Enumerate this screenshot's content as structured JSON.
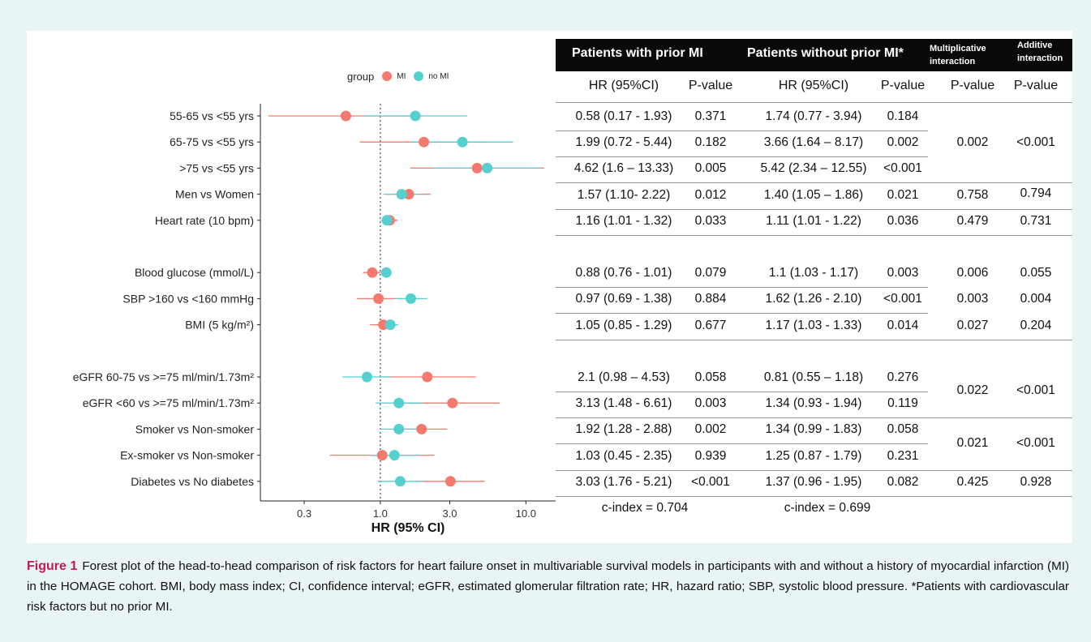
{
  "legend": {
    "title": "group",
    "mi_label": "MI",
    "nomi_label": "no MI"
  },
  "colors": {
    "mi": "#f47a6f",
    "nomi": "#56cfcf",
    "caption_label": "#c2185b"
  },
  "chart_data": {
    "type": "forest",
    "x_scale": "log",
    "xlim": [
      0.15,
      16
    ],
    "reference_line": 1.0,
    "xticks": [
      0.3,
      1.0,
      3.0,
      10.0
    ],
    "xtick_labels": [
      "0.3",
      "1.0",
      "3.0",
      "10.0"
    ],
    "xlabel": "HR (95% CI)",
    "legend_title": "group",
    "rows": [
      {
        "label": "55-65 vs <55 yrs",
        "mi": [
          0.58,
          0.17,
          1.93
        ],
        "nomi": [
          1.74,
          0.77,
          3.94
        ]
      },
      {
        "label": "65-75 vs <55 yrs",
        "mi": [
          1.99,
          0.72,
          5.44
        ],
        "nomi": [
          3.66,
          1.64,
          8.17
        ]
      },
      {
        "label": ">75 vs <55 yrs",
        "mi": [
          4.62,
          1.6,
          13.33
        ],
        "nomi": [
          5.42,
          2.34,
          12.55
        ]
      },
      {
        "label": "Men vs Women",
        "mi": [
          1.57,
          1.1,
          2.22
        ],
        "nomi": [
          1.4,
          1.05,
          1.86
        ]
      },
      {
        "label": "Heart rate (10 bpm)",
        "mi": [
          1.16,
          1.01,
          1.32
        ],
        "nomi": [
          1.11,
          1.01,
          1.22
        ]
      },
      {
        "label": "",
        "mi": null,
        "nomi": null
      },
      {
        "label": "Blood glucose (mmol/L)",
        "mi": [
          0.88,
          0.76,
          1.01
        ],
        "nomi": [
          1.1,
          1.03,
          1.17
        ]
      },
      {
        "label": "SBP >160 vs <160 mmHg",
        "mi": [
          0.97,
          0.69,
          1.38
        ],
        "nomi": [
          1.62,
          1.26,
          2.1
        ]
      },
      {
        "label": "BMI (5 kg/m²)",
        "mi": [
          1.05,
          0.85,
          1.29
        ],
        "nomi": [
          1.17,
          1.03,
          1.33
        ]
      },
      {
        "label": "",
        "mi": null,
        "nomi": null
      },
      {
        "label": "eGFR 60-75 vs >=75 ml/min/1.73m²",
        "mi": [
          2.1,
          0.98,
          4.53
        ],
        "nomi": [
          0.81,
          0.55,
          1.18
        ]
      },
      {
        "label": "eGFR <60 vs >=75 ml/min/1.73m²",
        "mi": [
          3.13,
          1.48,
          6.61
        ],
        "nomi": [
          1.34,
          0.93,
          1.94
        ]
      },
      {
        "label": "Smoker vs Non-smoker",
        "mi": [
          1.92,
          1.28,
          2.88
        ],
        "nomi": [
          1.34,
          0.99,
          1.83
        ]
      },
      {
        "label": "Ex-smoker vs Non-smoker",
        "mi": [
          1.03,
          0.45,
          2.35
        ],
        "nomi": [
          1.25,
          0.87,
          1.79
        ]
      },
      {
        "label": "Diabetes vs No diabetes",
        "mi": [
          3.03,
          1.76,
          5.21
        ],
        "nomi": [
          1.37,
          0.96,
          1.95
        ]
      }
    ]
  },
  "table": {
    "header_prior": "Patients with prior MI",
    "header_noprior": "Patients without prior MI*",
    "header_mult_line1": "Multiplicative",
    "header_mult_line2": "interaction",
    "header_add_line1": "Additive",
    "header_add_line2": "interaction",
    "sub_hr1": "HR (95%CI)",
    "sub_p1": "P-value",
    "sub_hr2": "HR (95%CI)",
    "sub_p2": "P-value",
    "sub_mult": "P-value",
    "sub_add": "P-value",
    "rows": [
      {
        "hr1": "0.58 (0.17 - 1.93)",
        "p1": "0.371",
        "hr2": "1.74 (0.77 - 3.94)",
        "p2": "0.184"
      },
      {
        "hr1": "1.99 (0.72 - 5.44)",
        "p1": "0.182",
        "hr2": "3.66 (1.64 – 8.17)",
        "p2": "0.002"
      },
      {
        "hr1": "4.62 (1.6 – 13.33)",
        "p1": "0.005",
        "hr2": "5.42 (2.34 – 12.55)",
        "p2": "<0.001"
      },
      {
        "hr1": "1.57 (1.10- 2.22)",
        "p1": "0.012",
        "hr2": "1.40 (1.05 – 1.86)",
        "p2": "0.021"
      },
      {
        "hr1": "1.16 (1.01 - 1.32)",
        "p1": "0.033",
        "hr2": "1.11 (1.01 - 1.22)",
        "p2": "0.036"
      },
      {
        "hr1": "",
        "p1": "",
        "hr2": "",
        "p2": ""
      },
      {
        "hr1": "0.88 (0.76 - 1.01)",
        "p1": "0.079",
        "hr2": "1.1 (1.03 - 1.17)",
        "p2": "0.003"
      },
      {
        "hr1": "0.97 (0.69 - 1.38)",
        "p1": "0.884",
        "hr2": "1.62 (1.26 - 2.10)",
        "p2": "<0.001"
      },
      {
        "hr1": "1.05 (0.85 - 1.29)",
        "p1": "0.677",
        "hr2": "1.17 (1.03 - 1.33)",
        "p2": "0.014"
      },
      {
        "hr1": "",
        "p1": "",
        "hr2": "",
        "p2": ""
      },
      {
        "hr1": "2.1 (0.98 – 4.53)",
        "p1": "0.058",
        "hr2": "0.81 (0.55 – 1.18)",
        "p2": "0.276"
      },
      {
        "hr1": "3.13 (1.48 - 6.61)",
        "p1": "0.003",
        "hr2": "1.34 (0.93 - 1.94)",
        "p2": "0.119"
      },
      {
        "hr1": "1.92 (1.28 - 2.88)",
        "p1": "0.002",
        "hr2": "1.34 (0.99 - 1.83)",
        "p2": "0.058"
      },
      {
        "hr1": "1.03 (0.45 - 2.35)",
        "p1": "0.939",
        "hr2": "1.25 (0.87 - 1.79)",
        "p2": "0.231"
      },
      {
        "hr1": "3.03 (1.76 - 5.21)",
        "p1": "<0.001",
        "hr2": "1.37 (0.96 - 1.95)",
        "p2": "0.082"
      }
    ],
    "interactions": [
      {
        "mult": "0.002",
        "add": "<0.001"
      },
      {
        "mult": "0.758",
        "add": "0.794"
      },
      {
        "mult": "0.479",
        "add": "0.731"
      },
      {
        "mult": "0.006",
        "add": "0.055"
      },
      {
        "mult": "0.003",
        "add": "0.004"
      },
      {
        "mult": "0.027",
        "add": "0.204"
      },
      {
        "mult": "0.022",
        "add": "<0.001"
      },
      {
        "mult": "0.021",
        "add": "<0.001"
      },
      {
        "mult": "0.425",
        "add": "0.928"
      }
    ],
    "cindex1": "c-index =  0.704",
    "cindex2": "c-index =  0.699"
  },
  "caption": {
    "label": "Figure 1",
    "text": "Forest plot of the head-to-head comparison of risk factors for heart failure onset in multivariable survival models in participants with and without a history of myocardial infarction (MI) in the HOMAGE cohort. BMI, body mass index; CI, confidence interval; eGFR, estimated glomerular filtration rate; HR, hazard ratio; SBP, systolic blood pressure. *Patients with cardiovascular risk factors but no prior MI."
  }
}
